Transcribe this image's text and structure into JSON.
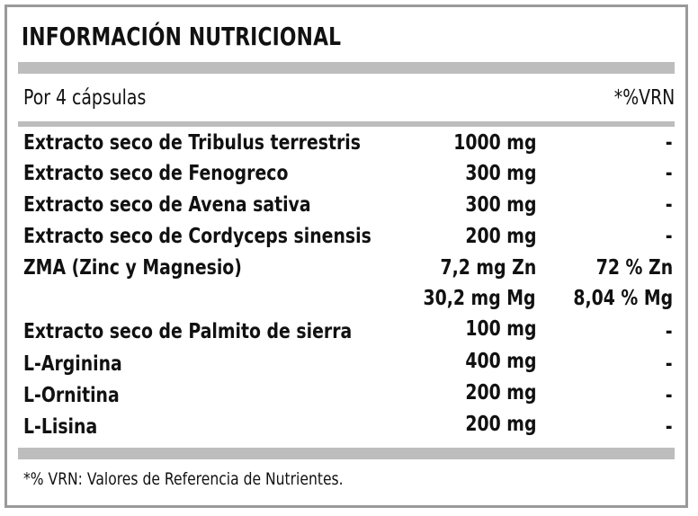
{
  "title": "INFORMACIÓN NUTRICIONAL",
  "serving_label": "Por 4 cápsulas",
  "vrn_header": "*%VRN",
  "rows": [
    {
      "name": "Extracto seco de Tribulus terrestris",
      "amount": "1000 mg",
      "vrn": "-"
    },
    {
      "name": "Extracto seco de Fenogreco",
      "amount": "300 mg",
      "vrn": "-"
    },
    {
      "name": "Extracto seco de Avena sativa",
      "amount": "300 mg",
      "vrn": "-"
    },
    {
      "name": "Extracto seco de Cordyceps sinensis",
      "amount": "200 mg",
      "vrn": "-"
    },
    {
      "name": "ZMA (Zinc y Magnesio)",
      "amount": "7,2 mg Zn",
      "vrn": "72 % Zn",
      "amount2": "30,2 mg Mg",
      "vrn2": "8,04 % Mg"
    },
    {
      "name": "Extracto seco de Palmito de sierra",
      "amount": "100 mg",
      "vrn": "-"
    },
    {
      "name": "L-Arginina",
      "amount": "400 mg",
      "vrn": "-"
    },
    {
      "name": "L-Ornitina",
      "amount": "200 mg",
      "vrn": "-"
    },
    {
      "name": "L-Lisina",
      "amount": "200 mg",
      "vrn": "-"
    }
  ],
  "footnote": "*% VRN: Valores de Referencia de Nutrientes.",
  "colors": {
    "bar": "#bdbdbd",
    "border": "#9a9a9a",
    "text": "#111111"
  }
}
